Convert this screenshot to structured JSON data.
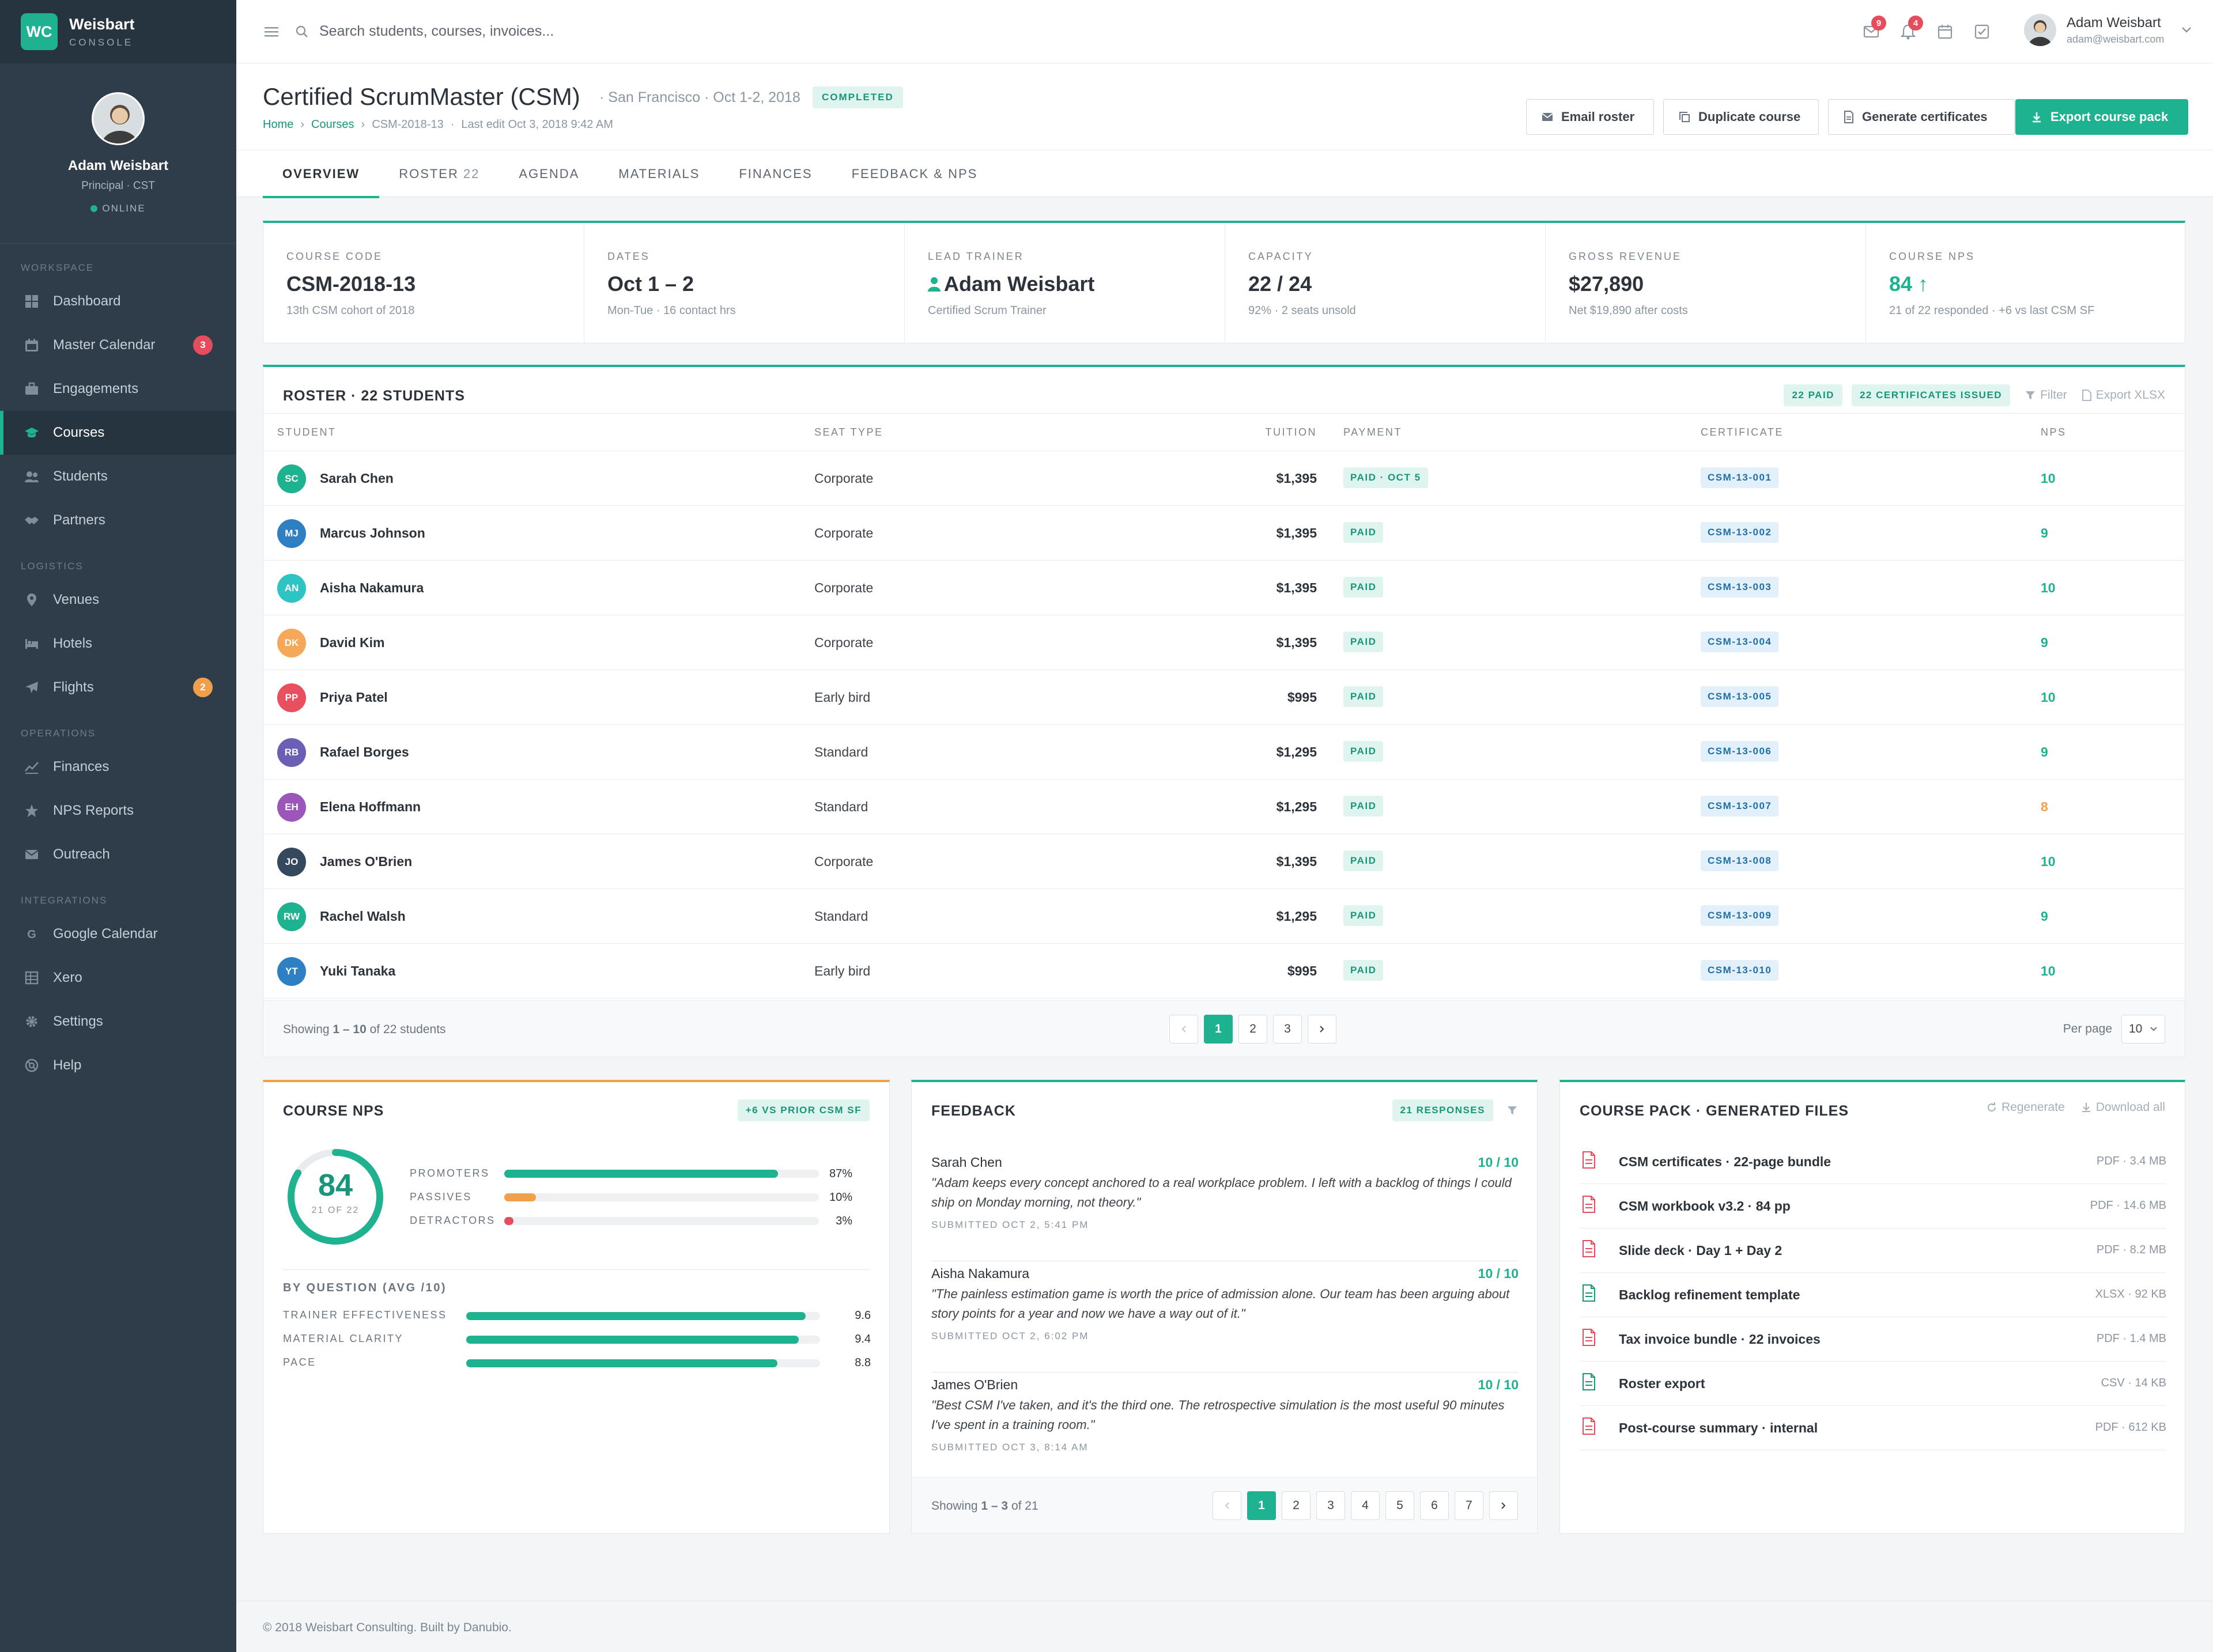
{
  "brand": {
    "logo": "WC",
    "name": "Weisbart",
    "sub": "CONSOLE"
  },
  "profile": {
    "name": "Adam Weisbart",
    "role": "Principal · CST",
    "status": "ONLINE"
  },
  "sidebar": {
    "sections": [
      {
        "title": "WORKSPACE",
        "items": [
          {
            "label": "Dashboard",
            "icon": "dashboard-icon"
          },
          {
            "label": "Master Calendar",
            "icon": "calendar-icon",
            "badge": "3",
            "badge_color": "#e74c5c"
          },
          {
            "label": "Engagements",
            "icon": "briefcase-icon"
          },
          {
            "label": "Courses",
            "icon": "graduation-cap-icon",
            "active": true
          },
          {
            "label": "Students",
            "icon": "users-icon"
          },
          {
            "label": "Partners",
            "icon": "handshake-icon"
          }
        ]
      },
      {
        "title": "LOGISTICS",
        "items": [
          {
            "label": "Venues",
            "icon": "map-pin-icon"
          },
          {
            "label": "Hotels",
            "icon": "bed-icon"
          },
          {
            "label": "Flights",
            "icon": "plane-icon",
            "badge": "2",
            "badge_color": "#f0a04b"
          }
        ]
      },
      {
        "title": "OPERATIONS",
        "items": [
          {
            "label": "Finances",
            "icon": "line-chart-icon"
          },
          {
            "label": "NPS Reports",
            "icon": "star-icon"
          },
          {
            "label": "Outreach",
            "icon": "envelope-icon"
          }
        ]
      },
      {
        "title": "INTEGRATIONS",
        "items": [
          {
            "label": "Google Calendar",
            "icon": "google-icon"
          },
          {
            "label": "Xero",
            "icon": "table-icon"
          },
          {
            "label": "Settings",
            "icon": "gear-icon"
          },
          {
            "label": "Help",
            "icon": "lifebuoy-icon"
          }
        ]
      }
    ]
  },
  "topbar": {
    "search_placeholder": "Search students, courses, invoices...",
    "mail_badge": "9",
    "bell_badge": "4",
    "user_name": "Adam Weisbart",
    "user_email": "adam@weisbart.com"
  },
  "header": {
    "title": "Certified ScrumMaster (CSM)",
    "meta": "· San Francisco · Oct 1-2, 2018",
    "status": "COMPLETED",
    "breadcrumb": {
      "home": "Home",
      "courses": "Courses",
      "current": "CSM-2018-13",
      "last_edit": "Last edit Oct 3, 2018 9:42 AM"
    },
    "buttons": {
      "email": "Email roster",
      "duplicate": "Duplicate course",
      "certificates": "Generate certificates",
      "export": "Export course pack"
    }
  },
  "tabs": [
    {
      "label": "OVERVIEW",
      "active": true
    },
    {
      "label": "ROSTER",
      "count": "22"
    },
    {
      "label": "AGENDA"
    },
    {
      "label": "MATERIALS"
    },
    {
      "label": "FINANCES"
    },
    {
      "label": "FEEDBACK & NPS"
    }
  ],
  "kpis": [
    {
      "label": "COURSE CODE",
      "value": "CSM-2018-13",
      "sub": "13th CSM cohort of 2018"
    },
    {
      "label": "DATES",
      "value": "Oct 1 – 2",
      "sub": "Mon-Tue · 16 contact hrs"
    },
    {
      "label": "LEAD TRAINER",
      "value": "Adam Weisbart",
      "sub": "Certified Scrum Trainer"
    },
    {
      "label": "CAPACITY",
      "value": "22 / 24",
      "sub": "92% · 2 seats unsold"
    },
    {
      "label": "GROSS REVENUE",
      "value": "$27,890",
      "sub": "Net $19,890 after costs"
    },
    {
      "label": "COURSE NPS",
      "value": "84 ↑",
      "sub": "21 of 22 responded · +6 vs last CSM SF"
    }
  ],
  "roster": {
    "title": "ROSTER · 22 STUDENTS",
    "pill_paid": "22 PAID",
    "pill_certs": "22 CERTIFICATES ISSUED",
    "filter": "Filter",
    "export": "Export XLSX",
    "columns": {
      "student": "STUDENT",
      "seat": "SEAT TYPE",
      "tuition": "TUITION",
      "payment": "PAYMENT",
      "certificate": "CERTIFICATE",
      "nps": "NPS"
    },
    "rows": [
      {
        "initials": "SC",
        "color": "#1fb290",
        "name": "Sarah Chen",
        "seat": "Corporate",
        "tuition": "$1,395",
        "payment": "PAID · OCT 5",
        "cert": "CSM-13-001",
        "nps": "10",
        "nps_color": "#1fb290"
      },
      {
        "initials": "MJ",
        "color": "#2f80c2",
        "name": "Marcus Johnson",
        "seat": "Corporate",
        "tuition": "$1,395",
        "payment": "PAID",
        "cert": "CSM-13-002",
        "nps": "9",
        "nps_color": "#1fb290"
      },
      {
        "initials": "AN",
        "color": "#2ec4c4",
        "name": "Aisha Nakamura",
        "seat": "Corporate",
        "tuition": "$1,395",
        "payment": "PAID",
        "cert": "CSM-13-003",
        "nps": "10",
        "nps_color": "#1fb290"
      },
      {
        "initials": "DK",
        "color": "#f5a85a",
        "name": "David Kim",
        "seat": "Corporate",
        "tuition": "$1,395",
        "payment": "PAID",
        "cert": "CSM-13-004",
        "nps": "9",
        "nps_color": "#1fb290"
      },
      {
        "initials": "PP",
        "color": "#e8505f",
        "name": "Priya Patel",
        "seat": "Early bird",
        "tuition": "$995",
        "payment": "PAID",
        "cert": "CSM-13-005",
        "nps": "10",
        "nps_color": "#1fb290"
      },
      {
        "initials": "RB",
        "color": "#6a5fb5",
        "name": "Rafael Borges",
        "seat": "Standard",
        "tuition": "$1,295",
        "payment": "PAID",
        "cert": "CSM-13-006",
        "nps": "9",
        "nps_color": "#1fb290"
      },
      {
        "initials": "EH",
        "color": "#9c55b8",
        "name": "Elena Hoffmann",
        "seat": "Standard",
        "tuition": "$1,295",
        "payment": "PAID",
        "cert": "CSM-13-007",
        "nps": "8",
        "nps_color": "#f0a04b"
      },
      {
        "initials": "JO",
        "color": "#34495e",
        "name": "James O'Brien",
        "seat": "Corporate",
        "tuition": "$1,395",
        "payment": "PAID",
        "cert": "CSM-13-008",
        "nps": "10",
        "nps_color": "#1fb290"
      },
      {
        "initials": "RW",
        "color": "#1fb290",
        "name": "Rachel Walsh",
        "seat": "Standard",
        "tuition": "$1,295",
        "payment": "PAID",
        "cert": "CSM-13-009",
        "nps": "9",
        "nps_color": "#1fb290"
      },
      {
        "initials": "YT",
        "color": "#2f80c2",
        "name": "Yuki Tanaka",
        "seat": "Early bird",
        "tuition": "$995",
        "payment": "PAID",
        "cert": "CSM-13-010",
        "nps": "10",
        "nps_color": "#1fb290"
      }
    ],
    "showing_prefix": "Showing ",
    "showing_range": "1 – 10",
    "showing_suffix": " of 22 students",
    "pages": [
      "1",
      "2",
      "3"
    ],
    "per_page_label": "Per page",
    "per_page_value": "10"
  },
  "nps": {
    "title": "COURSE NPS",
    "pill": "+6 VS PRIOR CSM SF",
    "score": "84",
    "score_sub": "21 OF 22",
    "score_fraction": 0.84,
    "distribution": [
      {
        "label": "PROMOTERS",
        "pct": "87%",
        "value": 0.87,
        "color": "#1fb290"
      },
      {
        "label": "PASSIVES",
        "pct": "10%",
        "value": 0.1,
        "color": "#f0a04b"
      },
      {
        "label": "DETRACTORS",
        "pct": "3%",
        "value": 0.03,
        "color": "#e74c5c"
      }
    ],
    "by_question_title": "BY QUESTION (AVG /10)",
    "questions": [
      {
        "label": "TRAINER EFFECTIVENESS",
        "value": "9.6",
        "score": 9.6
      },
      {
        "label": "MATERIAL CLARITY",
        "value": "9.4",
        "score": 9.4
      },
      {
        "label": "PACE",
        "value": "8.8",
        "score": 8.8
      }
    ]
  },
  "feedback": {
    "title": "FEEDBACK",
    "pill": "21 RESPONSES",
    "items": [
      {
        "name": "Sarah Chen",
        "score": "10 / 10",
        "quote": "\"Adam keeps every concept anchored to a real workplace problem. I left with a backlog of things I could ship on Monday morning, not theory.\"",
        "date": "SUBMITTED OCT 2, 5:41 PM"
      },
      {
        "name": "Aisha Nakamura",
        "score": "10 / 10",
        "quote": "\"The painless estimation game is worth the price of admission alone. Our team has been arguing about story points for a year and now we have a way out of it.\"",
        "date": "SUBMITTED OCT 2, 6:02 PM"
      },
      {
        "name": "James O'Brien",
        "score": "10 / 10",
        "quote": "\"Best CSM I've taken, and it's the third one. The retrospective simulation is the most useful 90 minutes I've spent in a training room.\"",
        "date": "SUBMITTED OCT 3, 8:14 AM"
      }
    ],
    "showing_prefix": "Showing ",
    "showing_range": "1 – 3",
    "showing_suffix": " of 21",
    "pages": [
      "1",
      "2",
      "3",
      "4",
      "5",
      "6",
      "7"
    ]
  },
  "files": {
    "title": "COURSE PACK · GENERATED FILES",
    "regenerate": "Regenerate",
    "download_all": "Download all",
    "items": [
      {
        "name": "CSM certificates · 22-page bundle",
        "meta": "PDF · 3.4 MB",
        "kind": "pdf"
      },
      {
        "name": "CSM workbook v3.2 · 84 pp",
        "meta": "PDF · 14.6 MB",
        "kind": "pdf"
      },
      {
        "name": "Slide deck · Day 1 + Day 2",
        "meta": "PDF · 8.2 MB",
        "kind": "pdf"
      },
      {
        "name": "Backlog refinement template",
        "meta": "XLSX · 92 KB",
        "kind": "xlsx"
      },
      {
        "name": "Tax invoice bundle · 22 invoices",
        "meta": "PDF · 1.4 MB",
        "kind": "pdf"
      },
      {
        "name": "Roster export",
        "meta": "CSV · 14 KB",
        "kind": "csv"
      },
      {
        "name": "Post-course summary · internal",
        "meta": "PDF · 612 KB",
        "kind": "pdf"
      }
    ]
  },
  "footer": {
    "text": "© 2018 Weisbart Consulting. Built by Danubio."
  },
  "colors": {
    "accent": "#1fb290",
    "sidebar": "#2f3d4b",
    "warning": "#f0a04b",
    "danger": "#e74c5c"
  }
}
